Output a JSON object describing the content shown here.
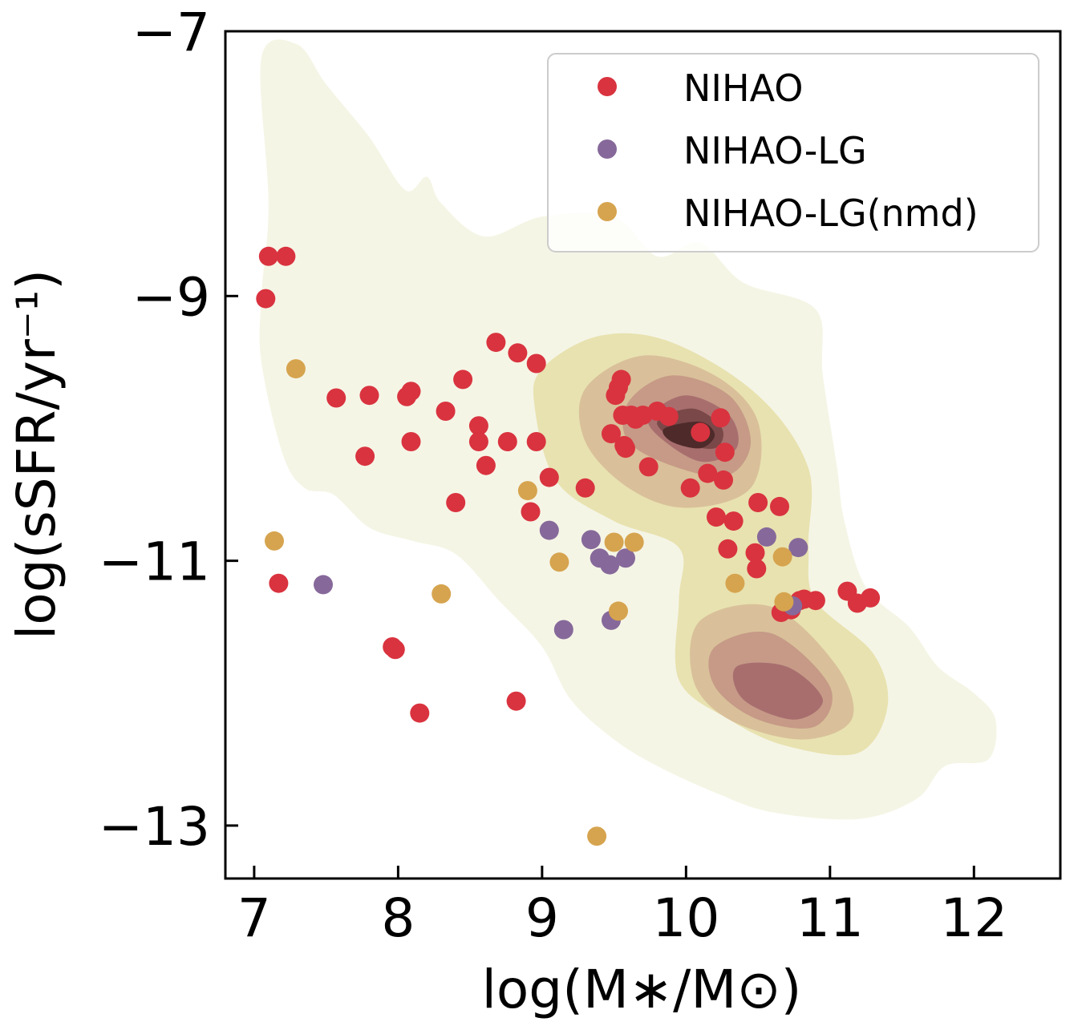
{
  "chart_data": {
    "type": "scatter",
    "xlabel": "log(M∗/M⊙)",
    "ylabel": "log(sSFR/yr⁻¹)",
    "xlim": [
      6.8,
      12.6
    ],
    "ylim": [
      -13.4,
      -7
    ],
    "x_ticks": [
      7,
      8,
      9,
      10,
      11,
      12
    ],
    "y_ticks": [
      -7,
      -9,
      -11,
      -13
    ],
    "x_tick_labels": [
      "7",
      "8",
      "9",
      "10",
      "11",
      "12"
    ],
    "y_tick_labels": [
      "−7",
      "−9",
      "−11",
      "−13"
    ],
    "legend_position": "top-right",
    "background_density": {
      "colors": [
        "#f5f5e6",
        "#e8e2b0",
        "#d9c09a",
        "#c69a87",
        "#a86e6e",
        "#7a4848",
        "#4e2a2a"
      ],
      "outer_region": [
        [
          7.05,
          -7.2
        ],
        [
          7.3,
          -7.1
        ],
        [
          7.5,
          -7.4
        ],
        [
          7.8,
          -7.8
        ],
        [
          8.05,
          -8.2
        ],
        [
          8.2,
          -8.1
        ],
        [
          8.3,
          -8.3
        ],
        [
          8.6,
          -8.55
        ],
        [
          9.0,
          -8.4
        ],
        [
          9.5,
          -8.4
        ],
        [
          9.8,
          -8.7
        ],
        [
          10.1,
          -8.6
        ],
        [
          10.4,
          -8.9
        ],
        [
          10.9,
          -9.1
        ],
        [
          10.95,
          -9.6
        ],
        [
          11.05,
          -10.3
        ],
        [
          11.1,
          -10.7
        ],
        [
          11.25,
          -11.2
        ],
        [
          11.55,
          -11.5
        ],
        [
          11.75,
          -11.8
        ],
        [
          12.0,
          -12.0
        ],
        [
          12.15,
          -12.2
        ],
        [
          12.1,
          -12.5
        ],
        [
          11.8,
          -12.55
        ],
        [
          11.6,
          -12.8
        ],
        [
          11.2,
          -12.95
        ],
        [
          10.6,
          -12.9
        ],
        [
          10.2,
          -12.75
        ],
        [
          9.8,
          -12.55
        ],
        [
          9.5,
          -12.35
        ],
        [
          9.2,
          -12.05
        ],
        [
          9.0,
          -11.65
        ],
        [
          8.7,
          -11.3
        ],
        [
          8.4,
          -10.95
        ],
        [
          8.1,
          -10.85
        ],
        [
          7.8,
          -10.75
        ],
        [
          7.55,
          -10.5
        ],
        [
          7.35,
          -10.45
        ],
        [
          7.2,
          -10.2
        ],
        [
          7.05,
          -9.5
        ],
        [
          7.05,
          -9.0
        ],
        [
          7.1,
          -8.3
        ]
      ],
      "levels": [
        [
          [
            9.0,
            -9.55
          ],
          [
            9.4,
            -9.3
          ],
          [
            9.9,
            -9.35
          ],
          [
            10.5,
            -9.75
          ],
          [
            10.85,
            -10.3
          ],
          [
            10.85,
            -10.9
          ],
          [
            10.9,
            -11.3
          ],
          [
            11.3,
            -11.7
          ],
          [
            11.4,
            -12.1
          ],
          [
            11.2,
            -12.45
          ],
          [
            10.7,
            -12.4
          ],
          [
            10.3,
            -12.2
          ],
          [
            9.95,
            -11.9
          ],
          [
            9.95,
            -11.3
          ],
          [
            9.95,
            -10.9
          ],
          [
            9.5,
            -10.7
          ],
          [
            9.1,
            -10.4
          ],
          [
            8.95,
            -9.85
          ]
        ],
        [
          [
            9.3,
            -9.7
          ],
          [
            9.7,
            -9.45
          ],
          [
            10.2,
            -9.6
          ],
          [
            10.5,
            -9.95
          ],
          [
            10.45,
            -10.45
          ],
          [
            10.0,
            -10.6
          ],
          [
            9.6,
            -10.45
          ],
          [
            9.3,
            -10.1
          ]
        ],
        [
          [
            9.6,
            -9.8
          ],
          [
            9.9,
            -9.6
          ],
          [
            10.3,
            -9.75
          ],
          [
            10.45,
            -10.1
          ],
          [
            10.3,
            -10.35
          ],
          [
            9.95,
            -10.3
          ],
          [
            9.6,
            -10.1
          ]
        ],
        [
          [
            9.75,
            -9.9
          ],
          [
            10.0,
            -9.75
          ],
          [
            10.3,
            -9.9
          ],
          [
            10.35,
            -10.15
          ],
          [
            10.1,
            -10.25
          ],
          [
            9.8,
            -10.05
          ]
        ],
        [
          [
            9.8,
            -9.95
          ],
          [
            10.05,
            -9.85
          ],
          [
            10.25,
            -10.0
          ],
          [
            10.2,
            -10.15
          ],
          [
            9.95,
            -10.1
          ]
        ],
        [
          [
            9.85,
            -10.0
          ],
          [
            10.1,
            -9.95
          ],
          [
            10.2,
            -10.05
          ],
          [
            10.1,
            -10.15
          ],
          [
            9.9,
            -10.1
          ]
        ],
        [
          [
            10.1,
            -11.45
          ],
          [
            10.6,
            -11.35
          ],
          [
            11.05,
            -11.8
          ],
          [
            11.15,
            -12.2
          ],
          [
            10.8,
            -12.35
          ],
          [
            10.3,
            -12.2
          ],
          [
            10.05,
            -11.9
          ]
        ],
        [
          [
            10.2,
            -11.65
          ],
          [
            10.6,
            -11.55
          ],
          [
            11.0,
            -11.95
          ],
          [
            10.9,
            -12.25
          ],
          [
            10.5,
            -12.2
          ],
          [
            10.2,
            -11.95
          ]
        ],
        [
          [
            10.35,
            -11.8
          ],
          [
            10.7,
            -11.8
          ],
          [
            10.95,
            -12.05
          ],
          [
            10.75,
            -12.2
          ],
          [
            10.4,
            -12.05
          ]
        ]
      ]
    },
    "series": [
      {
        "name": "NIHAO",
        "color": "#d9333f",
        "points": [
          [
            7.1,
            -8.7
          ],
          [
            7.22,
            -8.7
          ],
          [
            7.08,
            -9.02
          ],
          [
            7.17,
            -11.17
          ],
          [
            7.57,
            -9.77
          ],
          [
            7.8,
            -9.75
          ],
          [
            7.77,
            -10.21
          ],
          [
            7.96,
            -11.65
          ],
          [
            7.98,
            -11.67
          ],
          [
            8.06,
            -9.76
          ],
          [
            8.09,
            -9.72
          ],
          [
            8.09,
            -10.1
          ],
          [
            8.15,
            -12.15
          ],
          [
            8.33,
            -9.87
          ],
          [
            8.4,
            -10.56
          ],
          [
            8.45,
            -9.63
          ],
          [
            8.56,
            -9.98
          ],
          [
            8.56,
            -10.1
          ],
          [
            8.61,
            -10.28
          ],
          [
            8.68,
            -9.35
          ],
          [
            8.76,
            -10.1
          ],
          [
            8.82,
            -12.06
          ],
          [
            8.83,
            -9.43
          ],
          [
            8.92,
            -10.63
          ],
          [
            8.96,
            -9.51
          ],
          [
            8.96,
            -10.1
          ],
          [
            9.05,
            -10.37
          ],
          [
            9.3,
            -10.45
          ],
          [
            9.48,
            -10.04
          ],
          [
            9.51,
            -9.75
          ],
          [
            9.53,
            -9.69
          ],
          [
            9.55,
            -9.63
          ],
          [
            9.56,
            -9.9
          ],
          [
            9.57,
            -10.13
          ],
          [
            9.58,
            -10.15
          ],
          [
            9.62,
            -9.9
          ],
          [
            9.65,
            -9.93
          ],
          [
            9.7,
            -9.9
          ],
          [
            9.74,
            -10.29
          ],
          [
            9.8,
            -9.87
          ],
          [
            9.88,
            -9.91
          ],
          [
            10.03,
            -10.45
          ],
          [
            10.1,
            -10.03
          ],
          [
            10.15,
            -10.34
          ],
          [
            10.21,
            -10.67
          ],
          [
            10.24,
            -9.92
          ],
          [
            10.26,
            -10.39
          ],
          [
            10.27,
            -10.18
          ],
          [
            10.29,
            -10.91
          ],
          [
            10.33,
            -10.7
          ],
          [
            10.48,
            -10.94
          ],
          [
            10.49,
            -11.06
          ],
          [
            10.5,
            -10.56
          ],
          [
            10.65,
            -10.59
          ],
          [
            10.66,
            -11.39
          ],
          [
            10.73,
            -11.37
          ],
          [
            10.79,
            -11.3
          ],
          [
            10.82,
            -11.29
          ],
          [
            10.9,
            -11.3
          ],
          [
            11.12,
            -11.23
          ],
          [
            11.19,
            -11.32
          ],
          [
            11.28,
            -11.28
          ]
        ]
      },
      {
        "name": "NIHAO-LG",
        "color": "#86699a",
        "points": [
          [
            7.48,
            -11.18
          ],
          [
            9.05,
            -10.77
          ],
          [
            9.15,
            -11.52
          ],
          [
            9.34,
            -10.84
          ],
          [
            9.4,
            -10.98
          ],
          [
            9.47,
            -11.03
          ],
          [
            9.48,
            -11.45
          ],
          [
            9.58,
            -10.98
          ],
          [
            10.56,
            -10.82
          ],
          [
            10.74,
            -11.34
          ],
          [
            10.78,
            -10.9
          ]
        ]
      },
      {
        "name": "NIHAO-LG(nmd)",
        "color": "#d6a44f",
        "points": [
          [
            7.14,
            -10.85
          ],
          [
            7.29,
            -9.55
          ],
          [
            8.3,
            -11.25
          ],
          [
            8.9,
            -10.47
          ],
          [
            9.12,
            -11.01
          ],
          [
            9.38,
            -13.08
          ],
          [
            9.5,
            -10.86
          ],
          [
            9.53,
            -11.38
          ],
          [
            9.64,
            -10.86
          ],
          [
            10.34,
            -11.17
          ],
          [
            10.67,
            -10.97
          ],
          [
            10.68,
            -11.31
          ]
        ]
      }
    ]
  }
}
